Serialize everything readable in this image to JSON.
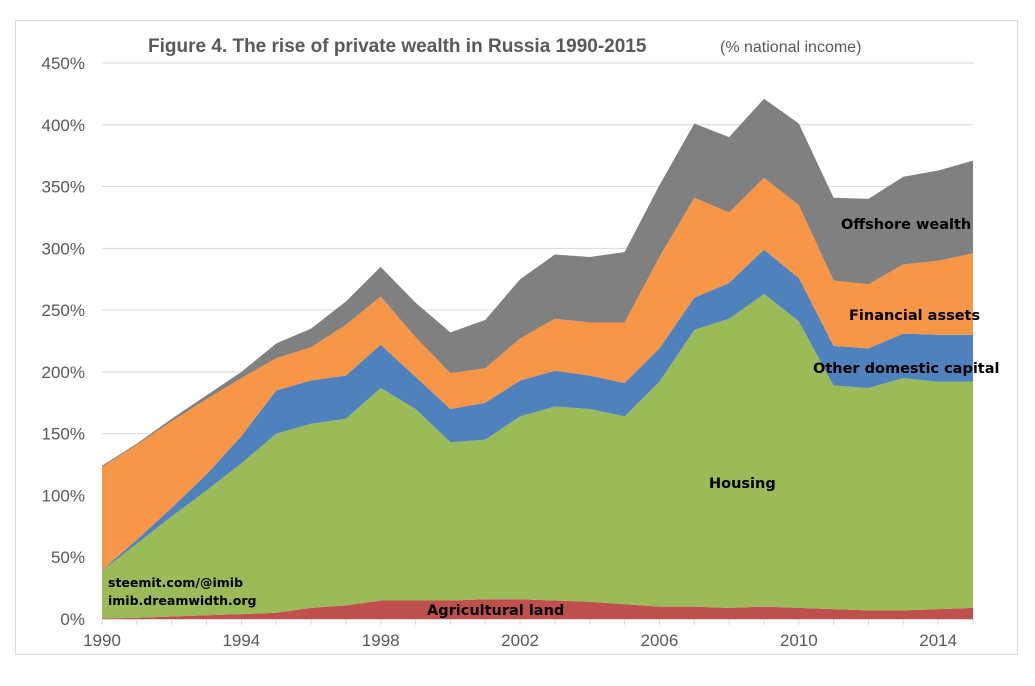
{
  "chart_data": {
    "type": "area",
    "stacked": true,
    "title": "Figure 4. The rise of private wealth in Russia 1990-2015",
    "subtitle": "(% national income)",
    "xlabel": "",
    "ylabel": "",
    "x": [
      1990,
      1991,
      1992,
      1993,
      1994,
      1995,
      1996,
      1997,
      1998,
      1999,
      2000,
      2001,
      2002,
      2003,
      2004,
      2005,
      2006,
      2007,
      2008,
      2009,
      2010,
      2011,
      2012,
      2013,
      2014,
      2015
    ],
    "x_ticks": [
      1990,
      1994,
      1998,
      2002,
      2006,
      2010,
      2014
    ],
    "x_tick_labels": [
      "1990",
      "1994",
      "1998",
      "2002",
      "2006",
      "2010",
      "2014"
    ],
    "ylim": [
      0,
      450
    ],
    "y_ticks": [
      0,
      50,
      100,
      150,
      200,
      250,
      300,
      350,
      400,
      450
    ],
    "y_tick_labels": [
      "0%",
      "50%",
      "100%",
      "150%",
      "200%",
      "250%",
      "300%",
      "350%",
      "400%",
      "450%"
    ],
    "grid": true,
    "legend": "inline labels",
    "series": [
      {
        "name": "Agricultural land",
        "color": "#c0504d",
        "values": [
          0.5,
          1,
          2,
          3,
          4,
          5,
          9,
          11,
          15,
          15,
          15,
          16,
          16,
          15,
          14,
          12,
          10,
          10,
          9,
          10,
          9,
          8,
          7,
          7,
          8,
          9
        ]
      },
      {
        "name": "Housing",
        "color": "#9bbb59",
        "values": [
          38.5,
          60,
          81,
          101,
          122,
          145,
          149,
          151,
          172,
          155,
          128,
          129,
          148,
          157,
          156,
          152,
          182,
          224,
          234,
          253,
          232,
          181,
          180,
          188,
          184,
          183
        ]
      },
      {
        "name": "Other domestic capital",
        "color": "#4f81bd",
        "values": [
          0.5,
          3,
          7,
          13,
          22,
          35,
          35,
          35,
          35,
          26,
          27,
          30,
          29,
          29,
          27,
          27,
          27,
          26,
          29,
          36,
          35,
          32,
          32,
          36,
          38,
          38
        ]
      },
      {
        "name": "Financial assets",
        "color": "#f79646",
        "values": [
          83.5,
          77,
          70,
          61,
          47,
          26,
          27,
          41,
          39,
          32,
          29,
          28,
          34,
          42,
          43,
          49,
          74,
          81,
          57,
          58,
          59,
          53,
          52,
          56,
          60,
          66
        ]
      },
      {
        "name": "Offshore wealth",
        "color": "#808080",
        "values": [
          1,
          1,
          2,
          3,
          5,
          12,
          15,
          19,
          24,
          28,
          33,
          39,
          48,
          52,
          53,
          57,
          58,
          60,
          61,
          64,
          66,
          67,
          69,
          71,
          73,
          75
        ]
      }
    ],
    "annotations": [
      "steemit.com/@imib",
      "imib.dreamwidth.org"
    ]
  }
}
